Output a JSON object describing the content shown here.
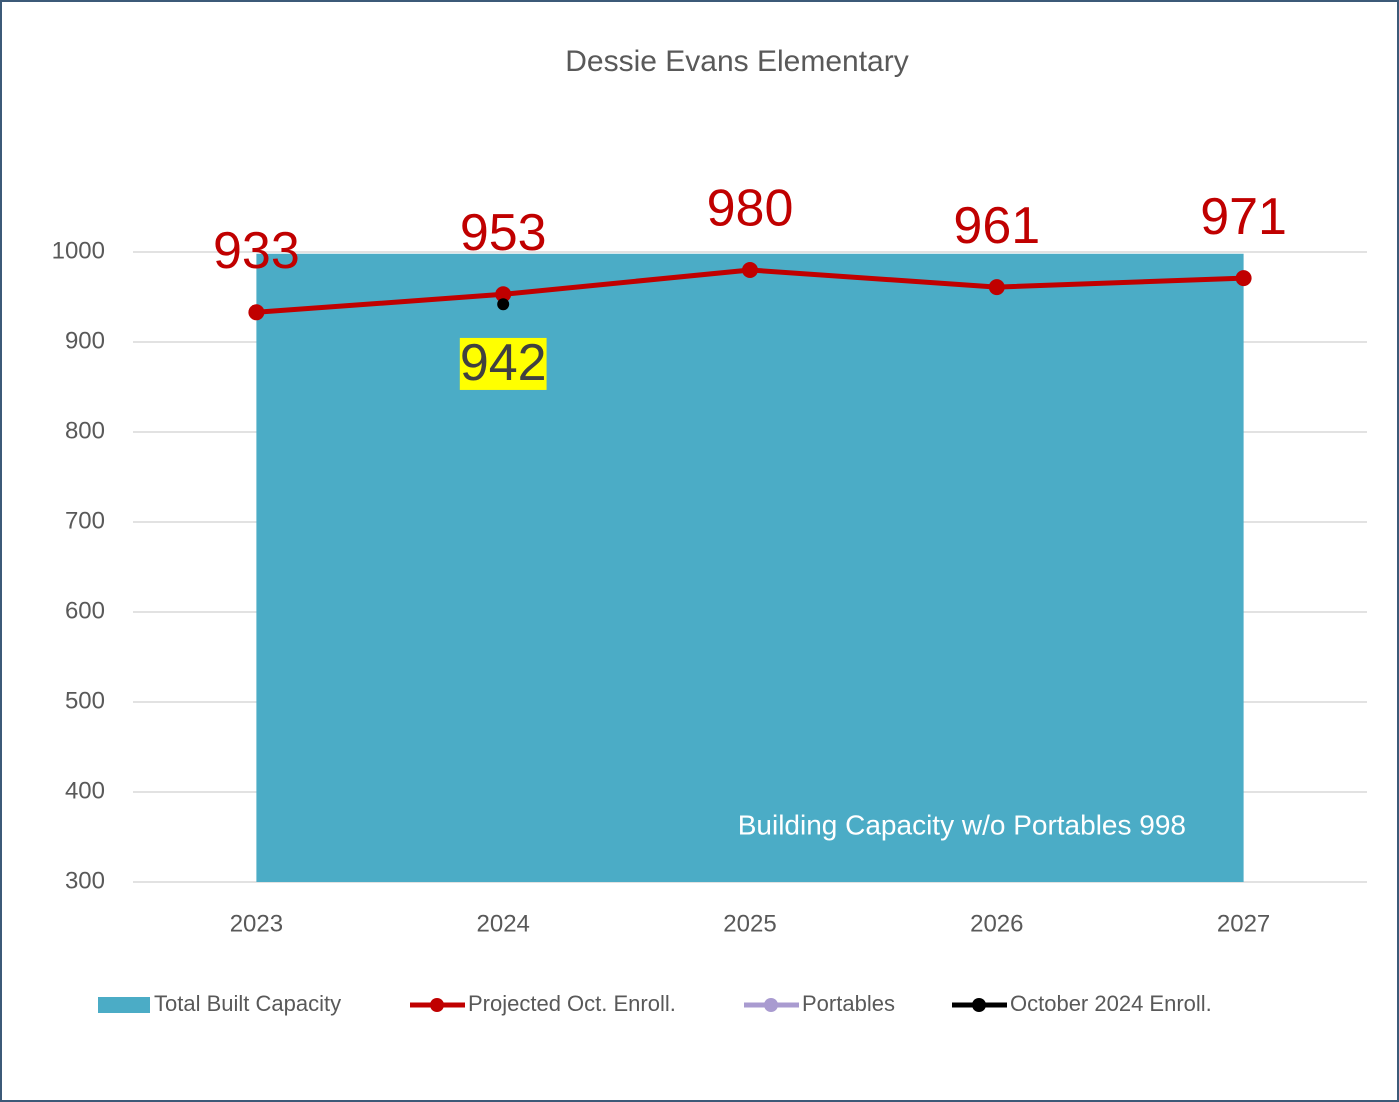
{
  "chart_data": {
    "type": "combo",
    "title": "Dessie Evans Elementary",
    "categories": [
      "2023",
      "2024",
      "2025",
      "2026",
      "2027"
    ],
    "series": [
      {
        "name": "Total Built Capacity",
        "type": "area",
        "color": "#4bacc6",
        "values": [
          998,
          998,
          998,
          998,
          998
        ]
      },
      {
        "name": "Projected Oct. Enroll.",
        "type": "line",
        "color": "#c00000",
        "values": [
          933,
          953,
          980,
          961,
          971
        ],
        "labels": "above"
      },
      {
        "name": "Portables",
        "type": "line",
        "color": "#a99bd0",
        "values": [
          null,
          null,
          null,
          null,
          null
        ]
      },
      {
        "name": "October 2024 Enroll.",
        "type": "line",
        "color": "#000000",
        "values": [
          null,
          942,
          null,
          null,
          null
        ],
        "labels": "below",
        "label_color": "#404040",
        "label_background": "#ffff00"
      }
    ],
    "annotation": "Building Capacity w/o Portables 998",
    "ylim": [
      300,
      1000
    ],
    "yticks": [
      300,
      400,
      500,
      600,
      700,
      800,
      900,
      1000
    ],
    "grid": true,
    "legend": "bottom"
  }
}
